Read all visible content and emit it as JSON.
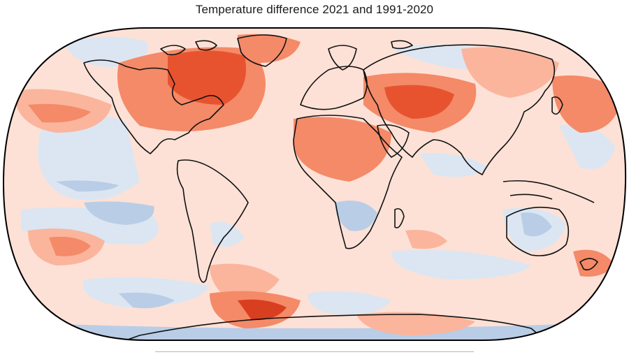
{
  "title": "Temperature difference 2021 and 1991-2020",
  "colors": {
    "background": "#fde1d6",
    "cool_light": "#dbe6f2",
    "cool_mid": "#b9cde6",
    "cool_strong": "#8fb0d8",
    "warm_light": "#fbb59c",
    "warm_mid": "#f48a68",
    "warm_strong": "#e8532f",
    "warm_extreme": "#d83f20",
    "coastline": "#111111",
    "frame": "#000000"
  }
}
